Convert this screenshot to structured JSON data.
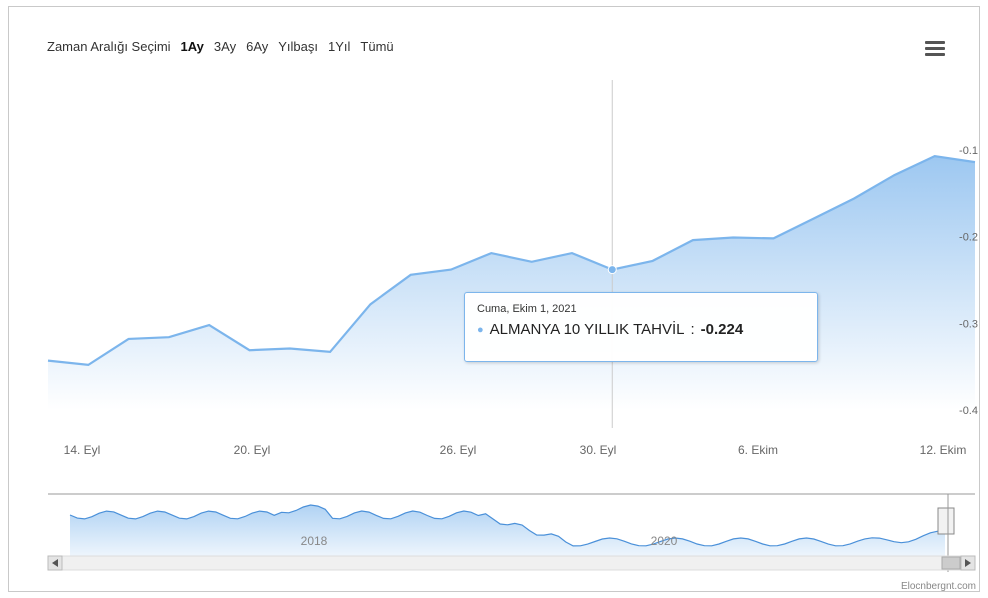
{
  "range_selector": {
    "label": "Zaman Aralığı Seçimi",
    "buttons": [
      "1Ay",
      "3Ay",
      "6Ay",
      "Yılbaşı",
      "1Yıl",
      "Tümü"
    ],
    "active": "1Ay"
  },
  "tooltip": {
    "date": "Cuma, Ekim 1, 2021",
    "series": "ALMANYA 10 YILLIK TAHVİL",
    "value": "-0.224"
  },
  "navigator": {
    "year_labels": [
      "2018",
      "2020"
    ]
  },
  "credits": "Elocnbergnt.com",
  "chart_data": {
    "type": "area",
    "x_ticks": [
      "14. Eyl",
      "20. Eyl",
      "26. Eyl",
      "30. Eyl",
      "6. Ekim",
      "12. Ekim"
    ],
    "y_ticks": [
      "-0.1",
      "-0.2",
      "-0.3",
      "-0.4"
    ],
    "ylim": [
      -0.4,
      -0.1
    ],
    "series": [
      {
        "name": "ALMANYA 10 YILLIK TAHVİL",
        "values": [
          -0.343,
          -0.348,
          -0.318,
          -0.316,
          -0.302,
          -0.331,
          -0.329,
          -0.333,
          -0.278,
          -0.244,
          -0.238,
          -0.219,
          -0.229,
          -0.219,
          -0.238,
          -0.228,
          -0.204,
          -0.201,
          -0.202,
          -0.179,
          -0.156,
          -0.129,
          -0.107,
          -0.114
        ]
      }
    ],
    "color": "#7cb5ec"
  }
}
